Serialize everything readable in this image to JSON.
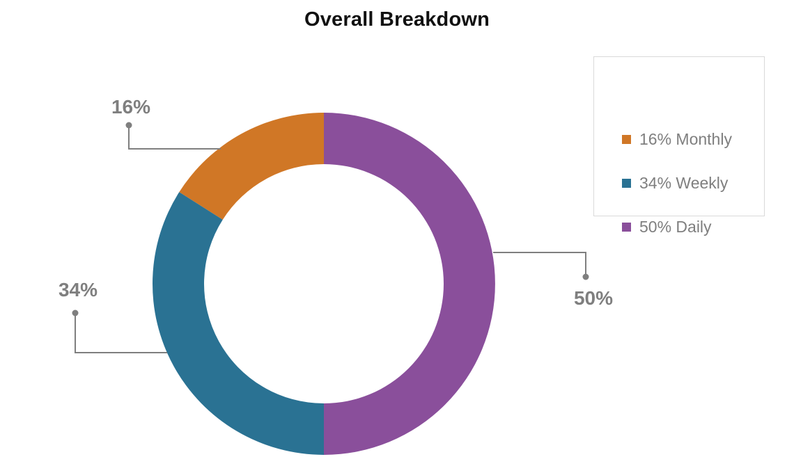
{
  "chart_data": {
    "type": "pie",
    "title": "Overall Breakdown",
    "categories": [
      "Monthly",
      "Weekly",
      "Daily"
    ],
    "values": [
      16,
      34,
      50
    ],
    "data_labels": [
      "16%",
      "34%",
      "50%"
    ],
    "legend_entries": [
      "16% Monthly",
      "34% Weekly",
      "50% Daily"
    ],
    "colors": [
      "#d07726",
      "#2a7293",
      "#8a4f9b"
    ],
    "legend_position": "top-right",
    "donut": true
  },
  "colors": {
    "leader_line": "#7f7f7f",
    "label_text": "#7f7f7f",
    "title_text": "#111111"
  }
}
